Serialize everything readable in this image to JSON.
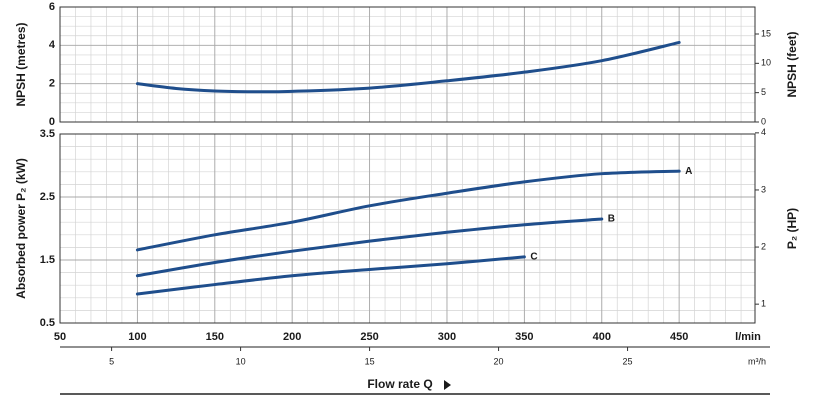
{
  "chart_data": [
    {
      "type": "line",
      "ylabel": "NPSH (metres)",
      "y2label": "NPSH (feet)",
      "xlim": [
        50,
        499
      ],
      "xticks": [
        50,
        100,
        150,
        200,
        250,
        300,
        350,
        400,
        450
      ],
      "x_minor_step": 10,
      "ylim": [
        0,
        6
      ],
      "yticks": [
        0,
        2,
        4,
        6
      ],
      "y_minor_step": 0.5,
      "y2lim": [
        0,
        19.6
      ],
      "y2ticks": [
        0,
        5,
        10,
        15
      ],
      "grid": true,
      "series": [
        {
          "name": "NPSH",
          "color": "#1f4e8c",
          "x": [
            100,
            125,
            150,
            175,
            200,
            250,
            300,
            350,
            400,
            450
          ],
          "values": [
            2.0,
            1.75,
            1.62,
            1.58,
            1.6,
            1.77,
            2.15,
            2.6,
            3.2,
            4.15
          ]
        }
      ]
    },
    {
      "type": "line",
      "ylabel": "Absorbed power P₂ (kW)",
      "y2label": "P₂ (HP)",
      "xlabel": "Flow rate Q",
      "xunit": "l/min",
      "x2unit": "m³/h",
      "xlim": [
        50,
        499
      ],
      "xticks": [
        50,
        100,
        150,
        200,
        250,
        300,
        350,
        400,
        450
      ],
      "x_minor_step": 10,
      "x2lim": [
        3,
        29.94
      ],
      "x2ticks": [
        5,
        10,
        15,
        20,
        25
      ],
      "ylim": [
        0.5,
        3.5
      ],
      "yticks": [
        0.5,
        1.5,
        2.5,
        3.5
      ],
      "y_minor_step": 0.2,
      "y2lim": [
        0.67,
        3.98
      ],
      "y2ticks": [
        1,
        2,
        3,
        4
      ],
      "grid": true,
      "series": [
        {
          "name": "A",
          "color": "#1f4e8c",
          "x": [
            100,
            150,
            200,
            250,
            300,
            350,
            400,
            450
          ],
          "values": [
            1.66,
            1.9,
            2.1,
            2.36,
            2.56,
            2.74,
            2.87,
            2.91
          ]
        },
        {
          "name": "B",
          "color": "#1f4e8c",
          "x": [
            100,
            150,
            200,
            250,
            300,
            350,
            400
          ],
          "values": [
            1.25,
            1.46,
            1.64,
            1.8,
            1.94,
            2.06,
            2.15
          ]
        },
        {
          "name": "C",
          "color": "#1f4e8c",
          "x": [
            100,
            150,
            200,
            250,
            300,
            350
          ],
          "values": [
            0.96,
            1.11,
            1.25,
            1.35,
            1.44,
            1.55
          ]
        }
      ]
    }
  ]
}
